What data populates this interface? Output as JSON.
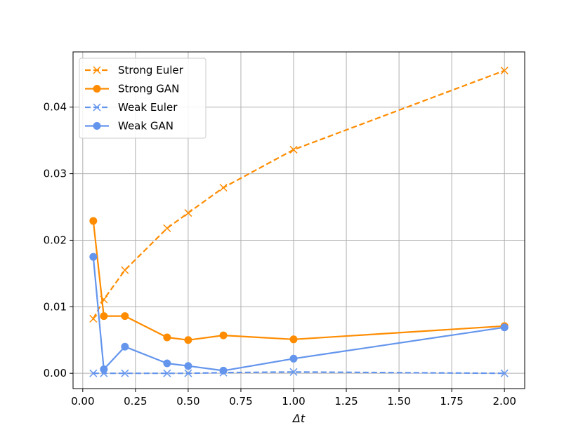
{
  "chart_data": {
    "type": "line",
    "xlabel": "Δt",
    "ylabel": "",
    "title": "",
    "xlim": [
      -0.046,
      2.096
    ],
    "ylim": [
      -0.0023,
      0.0483
    ],
    "grid": true,
    "legend_position": "top-left",
    "xticks": [
      0.0,
      0.25,
      0.5,
      0.75,
      1.0,
      1.25,
      1.5,
      1.75,
      2.0
    ],
    "xtick_labels": [
      "0.00",
      "0.25",
      "0.50",
      "0.75",
      "1.00",
      "1.25",
      "1.50",
      "1.75",
      "2.00"
    ],
    "yticks": [
      0.0,
      0.01,
      0.02,
      0.03,
      0.04
    ],
    "ytick_labels": [
      "0.00",
      "0.01",
      "0.02",
      "0.03",
      "0.04"
    ],
    "x": [
      0.05,
      0.1,
      0.2,
      0.4,
      0.5,
      0.667,
      1.0,
      2.0
    ],
    "series": [
      {
        "name": "Strong Euler",
        "color": "#ff8c00",
        "linestyle": "dashed",
        "marker": "x",
        "values": [
          0.0082,
          0.0111,
          0.0155,
          0.0218,
          0.0241,
          0.0279,
          0.0336,
          0.0455
        ]
      },
      {
        "name": "Strong GAN",
        "color": "#ff8c00",
        "linestyle": "solid",
        "marker": "o",
        "values": [
          0.0229,
          0.0086,
          0.0086,
          0.0054,
          0.005,
          0.0057,
          0.0051,
          0.0071
        ]
      },
      {
        "name": "Weak Euler",
        "color": "#6495ed",
        "linestyle": "dashed",
        "marker": "x",
        "values": [
          0.0,
          0.0,
          0.0,
          0.0,
          0.0,
          0.0001,
          0.0002,
          0.0
        ]
      },
      {
        "name": "Weak GAN",
        "color": "#6495ed",
        "linestyle": "solid",
        "marker": "o",
        "values": [
          0.0175,
          0.0006,
          0.004,
          0.0015,
          0.0011,
          0.0004,
          0.0022,
          0.0069
        ]
      }
    ]
  }
}
